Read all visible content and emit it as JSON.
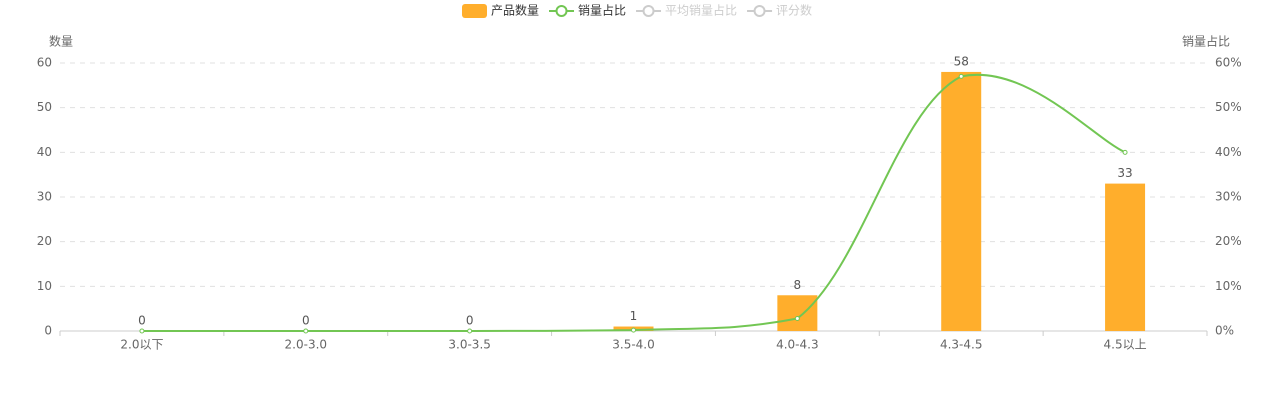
{
  "chart_data": {
    "type": "bar",
    "categories": [
      "2.0以下",
      "2.0-3.0",
      "3.0-3.5",
      "3.5-4.0",
      "4.0-4.3",
      "4.3-4.5",
      "4.5以上"
    ],
    "series": [
      {
        "name": "产品数量",
        "type": "bar",
        "color": "#ffae2c",
        "values": [
          0,
          0,
          0,
          1,
          8,
          58,
          33
        ]
      },
      {
        "name": "销量占比",
        "type": "line",
        "axis": "y2",
        "color": "#72c653",
        "values": [
          0,
          0,
          0,
          0.2,
          2.8,
          57,
          40
        ]
      }
    ],
    "legend_inactive": [
      "平均销量占比",
      "评分数"
    ],
    "inactive_color": "#cccccc",
    "ylabel": "数量",
    "y2label": "销量占比",
    "ylim": [
      0,
      60
    ],
    "yticks": [
      0,
      10,
      20,
      30,
      40,
      50,
      60
    ],
    "y2lim": [
      0,
      60
    ],
    "y2ticks": [
      {
        "value": 0,
        "label": "0%"
      },
      {
        "value": 10,
        "label": "10%"
      },
      {
        "value": 20,
        "label": "20%"
      },
      {
        "value": 30,
        "label": "30%"
      },
      {
        "value": 40,
        "label": "40%"
      },
      {
        "value": 50,
        "label": "50%"
      },
      {
        "value": 60,
        "label": "60%"
      }
    ],
    "grid": true,
    "legend": "top"
  }
}
